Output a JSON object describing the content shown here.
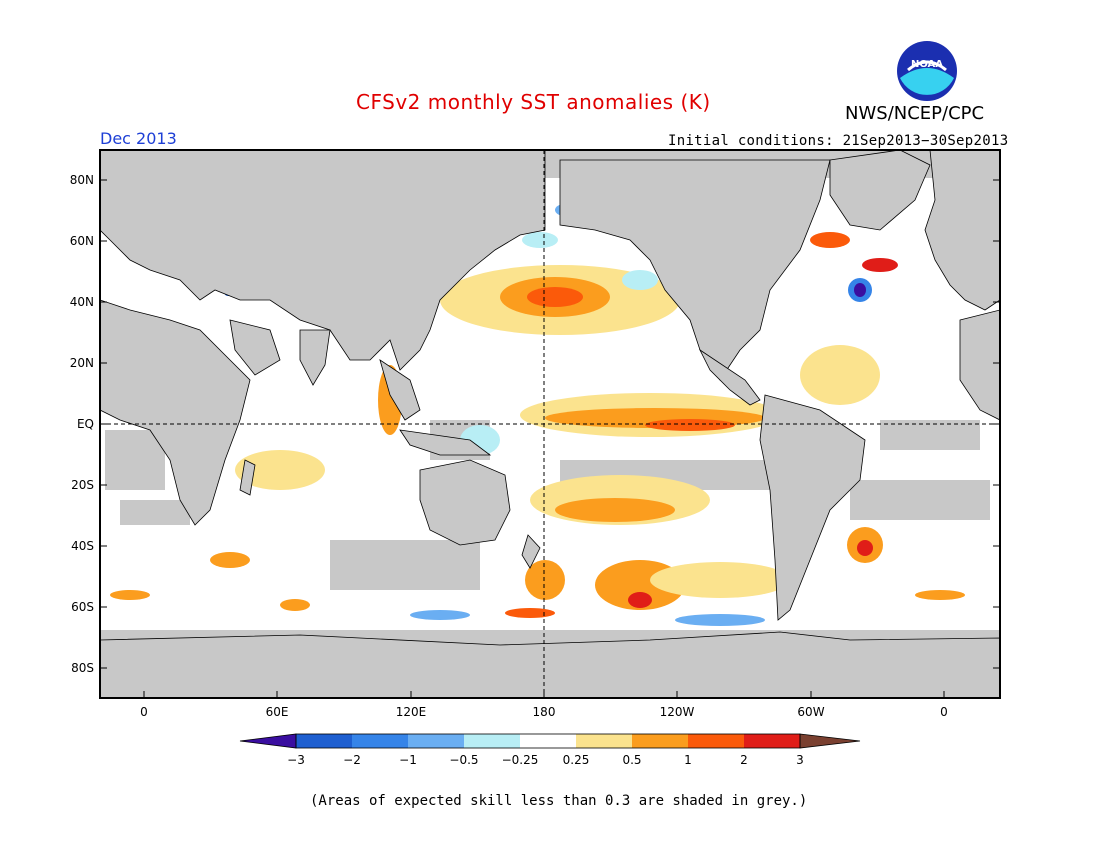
{
  "header": {
    "title": "CFSv2 monthly SST anomalies (K)",
    "agency": "NWS/NCEP/CPC",
    "month": "Dec 2013",
    "initial_conditions": "Initial conditions: 21Sep2013−30Sep2013",
    "logo_text": "NOAA"
  },
  "map": {
    "lat_labels": [
      "80N",
      "60N",
      "40N",
      "20N",
      "EQ",
      "20S",
      "40S",
      "60S",
      "80S"
    ],
    "lon_labels": [
      "0",
      "60E",
      "120E",
      "180",
      "120W",
      "60W",
      "0"
    ]
  },
  "colorbar": {
    "labels": [
      "−3",
      "−2",
      "−1",
      "−0.5",
      "−0.25",
      "0.25",
      "0.5",
      "1",
      "2",
      "3"
    ],
    "colors": [
      "#3a0ea0",
      "#1e5fd0",
      "#3584e8",
      "#6aaef2",
      "#b8eef5",
      "#ffffff",
      "#fbe38e",
      "#fb9d1e",
      "#fb5a0a",
      "#e01d18",
      "#a00d0d",
      "#7a4030"
    ]
  },
  "colors": {
    "land": "#c8c8c8",
    "ocean": "#ffffff",
    "title": "#e00000",
    "month": "#1d3fd6"
  },
  "footnote": "(Areas of expected skill less than 0.3 are shaded in grey.)"
}
